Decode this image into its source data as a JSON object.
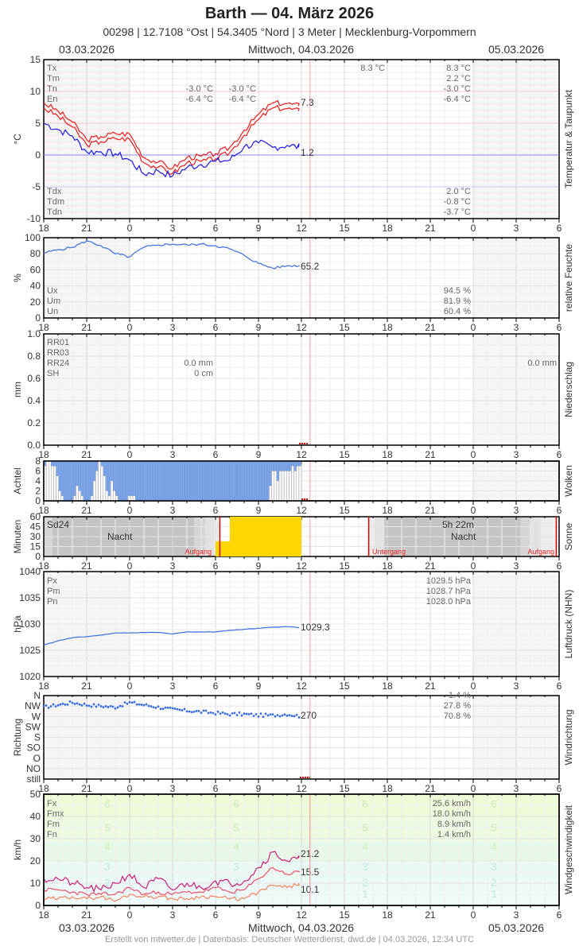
{
  "header": {
    "title": "Barth  —  04. März 2026",
    "subtitle": "00298  |  12.7108 °Ost  |  54.3405 °Nord  |  3 Meter  |  Mecklenburg-Vorpommern",
    "date_left": "03.03.2026",
    "date_center": "Mittwoch, 04.03.2026",
    "date_right": "05.03.2026"
  },
  "footer": {
    "text": "Erstellt von mtwetter.de | Datenbasis: Deutscher Wetterdienst, dwd.de | 04.03.2026, 12:34 UTC",
    "date_left": "03.03.2026",
    "date_center": "Mittwoch, 04.03.2026",
    "date_right": "05.03.2026"
  },
  "x_ticks": [
    "18",
    "21",
    "0",
    "3",
    "6",
    "9",
    "12",
    "15",
    "18",
    "21",
    "0",
    "3",
    "6"
  ],
  "colors": {
    "temp": "#ee1c1c",
    "dewpoint": "#1a1ae6",
    "humidity": "#3a6ee0",
    "cloud": "#7ba3e6",
    "sun": "#ffd700",
    "pressure": "#3a6ee0",
    "wind_dir": "#3a6ee0",
    "fx": "#cc1f7a",
    "fm": "#e8506a",
    "fn": "#f5845a",
    "now_line": "#f4a0a0"
  },
  "chart_data": [
    {
      "type": "line",
      "title": "Temperatur & Taupunkt",
      "ylabel": "°C",
      "ylim": [
        -10,
        15
      ],
      "y_ticks": [
        "15",
        "10",
        "5",
        "0",
        "-5",
        "-10"
      ],
      "x": [
        "18",
        "19",
        "20",
        "21",
        "22",
        "23",
        "0",
        "1",
        "2",
        "3",
        "4",
        "5",
        "6",
        "7",
        "8",
        "9",
        "10",
        "11",
        "12"
      ],
      "series": [
        {
          "name": "Temperatur",
          "values": [
            7.8,
            6.5,
            4.8,
            2.0,
            2.5,
            3.0,
            2.9,
            -0.8,
            -1.5,
            -2.5,
            -0.8,
            -0.6,
            -0.2,
            0.8,
            3.5,
            6.0,
            7.8,
            7.7,
            7.3
          ]
        },
        {
          "name": "Taupunkt",
          "values": [
            5.0,
            4.0,
            3.0,
            0.5,
            0.5,
            0.2,
            -0.8,
            -3.0,
            -2.5,
            -3.3,
            -2.0,
            -1.5,
            -1.0,
            -0.8,
            1.3,
            1.9,
            1.2,
            1.5,
            1.2
          ]
        }
      ],
      "end_labels": {
        "temp": "7.3",
        "dew": "1.2"
      },
      "legend": {
        "labels": [
          "Tx",
          "Tm",
          "Tn",
          "En",
          "Tdx",
          "Tdm",
          "Tdn"
        ],
        "mid_day1": {
          "tn": "-3.0 °C",
          "en": "-6.4 °C"
        },
        "mid_day1b": {
          "tn": "-3.0 °C",
          "en": "-6.4 °C"
        },
        "day2_tx_top": "8.3 °C",
        "day2": {
          "tx": "8.3 °C",
          "tm": "2.2 °C",
          "tn": "-3.0 °C",
          "en": "-6.4 °C",
          "tdx": "2.0 °C",
          "tdm": "-0.8 °C",
          "tdn": "-3.7 °C"
        }
      }
    },
    {
      "type": "line",
      "title": "relative Feuchte",
      "ylabel": "%",
      "ylim": [
        0,
        100
      ],
      "y_ticks": [
        "100",
        "80",
        "60",
        "40",
        "20",
        "0"
      ],
      "series": [
        {
          "name": "rel. Feuchte",
          "values": [
            81,
            85,
            88,
            96,
            90,
            80,
            76,
            88,
            91,
            92,
            91,
            92,
            90,
            86,
            78,
            68,
            62,
            65,
            65.2
          ]
        }
      ],
      "end_label": "65.2",
      "legend": {
        "labels": [
          "Ux",
          "Um",
          "Un"
        ],
        "values": [
          "94.5 %",
          "81.9 %",
          "60.4 %"
        ]
      }
    },
    {
      "type": "bar",
      "title": "Niederschlag",
      "ylabel": "mm",
      "ylim": [
        0,
        1.0
      ],
      "y_ticks": [
        "1.0",
        "0.8",
        "0.6",
        "0.4",
        "0.2",
        "0.0"
      ],
      "legend": {
        "labels": [
          "RR01",
          "RR03",
          "RR24",
          "SH"
        ],
        "rr24_day1": "0.0 mm",
        "sh_day1": "0 cm",
        "rr24_day2": "0.0 mm"
      }
    },
    {
      "type": "bar",
      "title": "Wolken",
      "ylabel": "Achtel",
      "ylim": [
        0,
        8
      ],
      "y_ticks": [
        "8",
        "6",
        "4",
        "2",
        "0"
      ],
      "values_clear_eighths": [
        7,
        8,
        8,
        7,
        7,
        5,
        2,
        1,
        0,
        0,
        0,
        0,
        1,
        3,
        2,
        1,
        0,
        0,
        0,
        1,
        4,
        6,
        8,
        7,
        5,
        2,
        1,
        4,
        2,
        1,
        0,
        0,
        0,
        0,
        1,
        1,
        1,
        0,
        0,
        0,
        0,
        0,
        0,
        0,
        0,
        0,
        0,
        0,
        0,
        0,
        0,
        0,
        0,
        0,
        0,
        0,
        0,
        0,
        0,
        0,
        0,
        0,
        0,
        0,
        0,
        0,
        0,
        0,
        0,
        0,
        0,
        0,
        0,
        0,
        0,
        0,
        0,
        0,
        0,
        0,
        0,
        0,
        0,
        0,
        0,
        0,
        0,
        0,
        0,
        0,
        0,
        3,
        6,
        6,
        4,
        6,
        6,
        6,
        6,
        6,
        7,
        6,
        7,
        7
      ]
    },
    {
      "type": "bar",
      "title": "Sonne",
      "ylabel": "Minuten",
      "ylim": [
        0,
        60
      ],
      "y_ticks": [
        "60",
        "45",
        "30",
        "15",
        "0"
      ],
      "x": [
        "6",
        "7",
        "8",
        "9",
        "10",
        "11"
      ],
      "values": [
        23,
        60,
        60,
        60,
        60,
        60
      ],
      "labels": {
        "sd24": "Sd24",
        "night1": "Nacht",
        "sunrise1": "Aufgang",
        "sunset": "Untergang",
        "daylen": "5h 22m",
        "night2": "Nacht",
        "sunrise2": "Aufgang"
      }
    },
    {
      "type": "line",
      "title": "Luftdruck (NHN)",
      "ylabel": "hPa",
      "ylim": [
        1020,
        1040
      ],
      "y_ticks": [
        "1040",
        "1035",
        "1030",
        "1025",
        "1020"
      ],
      "series": [
        {
          "name": "Luftdruck",
          "values": [
            1026.0,
            1026.8,
            1027.4,
            1027.6,
            1027.9,
            1028.3,
            1028.3,
            1028.4,
            1028.4,
            1028.1,
            1028.5,
            1028.5,
            1028.5,
            1028.8,
            1029.0,
            1029.2,
            1029.4,
            1029.5,
            1029.3
          ]
        }
      ],
      "end_label": "1029.3",
      "legend": {
        "labels": [
          "Px",
          "Pm",
          "Pn"
        ],
        "values": [
          "1029.5 hPa",
          "1028.7 hPa",
          "1028.0 hPa"
        ]
      }
    },
    {
      "type": "scatter",
      "title": "Windrichtung",
      "ylabel": "Richtung",
      "y_ticks": [
        "N",
        "NW",
        "W",
        "SW",
        "S",
        "SO",
        "O",
        "NO",
        "still"
      ],
      "series": [
        {
          "name": "Windrichtung (°)",
          "values": [
            310,
            320,
            330,
            320,
            315,
            310,
            330,
            320,
            310,
            300,
            295,
            290,
            285,
            280,
            280,
            275,
            275,
            280,
            270
          ]
        }
      ],
      "end_label": "270",
      "legend": {
        "values": [
          "1.4 %",
          "27.8 %",
          "70.8 %"
        ]
      }
    },
    {
      "type": "line",
      "title": "Windgeschwindigkeit",
      "ylabel": "km/h",
      "ylim": [
        0,
        50
      ],
      "y_ticks": [
        "50",
        "40",
        "30",
        "20",
        "10",
        "0"
      ],
      "series": [
        {
          "name": "Fx",
          "values": [
            12,
            12,
            10,
            8,
            7,
            10,
            14,
            8,
            12,
            7,
            10,
            8,
            11,
            10,
            11,
            17,
            24,
            20,
            21.2
          ]
        },
        {
          "name": "Fm",
          "values": [
            7,
            7,
            6,
            5,
            5,
            5,
            8,
            5,
            6,
            5,
            6,
            6,
            8,
            6,
            7,
            12,
            17,
            14,
            15.5
          ]
        },
        {
          "name": "Fn",
          "values": [
            3,
            3,
            4,
            3,
            4,
            2,
            5,
            4,
            4,
            3,
            3,
            4,
            4,
            3,
            3,
            6,
            9,
            8,
            10.1
          ]
        }
      ],
      "beaufort_labels": [
        "6",
        "5",
        "4",
        "3",
        "2",
        "1"
      ],
      "end_labels": {
        "fx": "21.2",
        "fm": "15.5",
        "fn": "10.1"
      },
      "legend": {
        "labels": [
          "Fx",
          "Fmx",
          "Fm",
          "Fn"
        ],
        "values": [
          "25.6 km/h",
          "18.0 km/h",
          "8.9 km/h",
          "1.4 km/h"
        ]
      }
    }
  ]
}
